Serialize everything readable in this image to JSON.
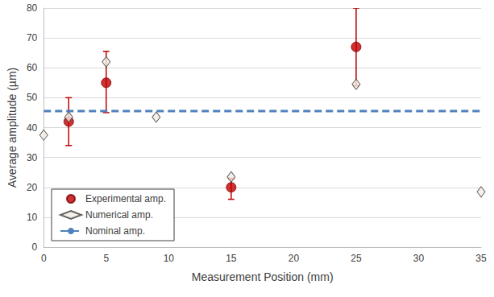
{
  "chart_data": {
    "type": "scatter",
    "x_label": "Measurement Position (mm)",
    "y_label": "Average amplitude (µm)",
    "xlim": [
      0,
      35
    ],
    "xticks": [
      0,
      5,
      10,
      15,
      20,
      25,
      30,
      35
    ],
    "ylim": [
      0,
      80
    ],
    "yticks": [
      0,
      10,
      20,
      30,
      40,
      50,
      60,
      70,
      80
    ],
    "grid": true,
    "legend": "lower left",
    "series": [
      {
        "name": "Experimental amp.",
        "type": "scatter",
        "marker": "circle",
        "color": "#c00000",
        "x": [
          2,
          5,
          15,
          25
        ],
        "values": [
          42,
          55,
          20,
          67
        ],
        "error_range": [
          [
            34,
            50
          ],
          [
            45,
            65.5
          ],
          [
            16,
            23
          ],
          [
            54,
            80
          ]
        ]
      },
      {
        "name": "Numerical amp.",
        "type": "scatter",
        "marker": "diamond",
        "color": "#f2ece2",
        "x": [
          0,
          2,
          5,
          9,
          15,
          25,
          35
        ],
        "values": [
          37.5,
          43.5,
          62,
          43.5,
          23.5,
          54.5,
          18.5
        ]
      },
      {
        "name": "Nominal amp.",
        "type": "line",
        "line_style": "dashed",
        "color": "#4f81bd",
        "x": [
          0,
          35
        ],
        "values": [
          45.5,
          45.5
        ]
      }
    ]
  }
}
